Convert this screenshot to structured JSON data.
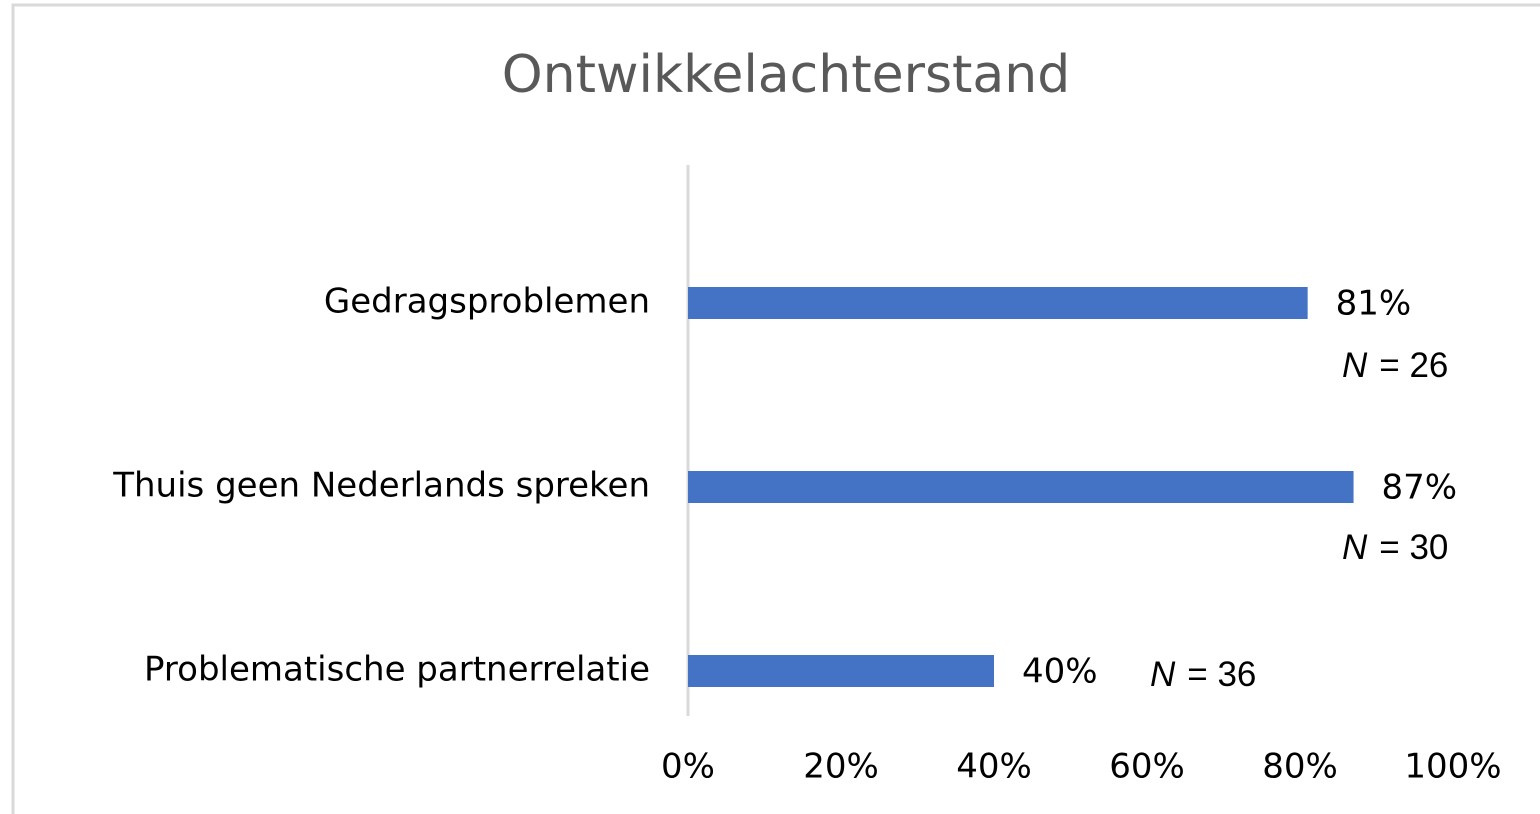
{
  "chart_data": {
    "type": "bar",
    "orientation": "horizontal",
    "title": "Ontwikkelachterstand",
    "categories": [
      "Gedragsproblemen",
      "Thuis geen Nederlands spreken",
      "Problematische partnerrelatie"
    ],
    "values": [
      81,
      87,
      40
    ],
    "value_labels": [
      "81%",
      "87%",
      "40%"
    ],
    "color": "#4472c4",
    "xlim": [
      0,
      100
    ],
    "xticks": [
      {
        "value": 0,
        "label": "0%"
      },
      {
        "value": 20,
        "label": "20%"
      },
      {
        "value": 40,
        "label": "40%"
      },
      {
        "value": 60,
        "label": "60%"
      },
      {
        "value": 80,
        "label": "80%"
      },
      {
        "value": 100,
        "label": "100%"
      }
    ],
    "grid": false,
    "annotations": [
      {
        "symbol": "N",
        "text": "= 26"
      },
      {
        "symbol": "N",
        "text": "= 30"
      },
      {
        "symbol": "N",
        "text": "= 36"
      }
    ]
  }
}
